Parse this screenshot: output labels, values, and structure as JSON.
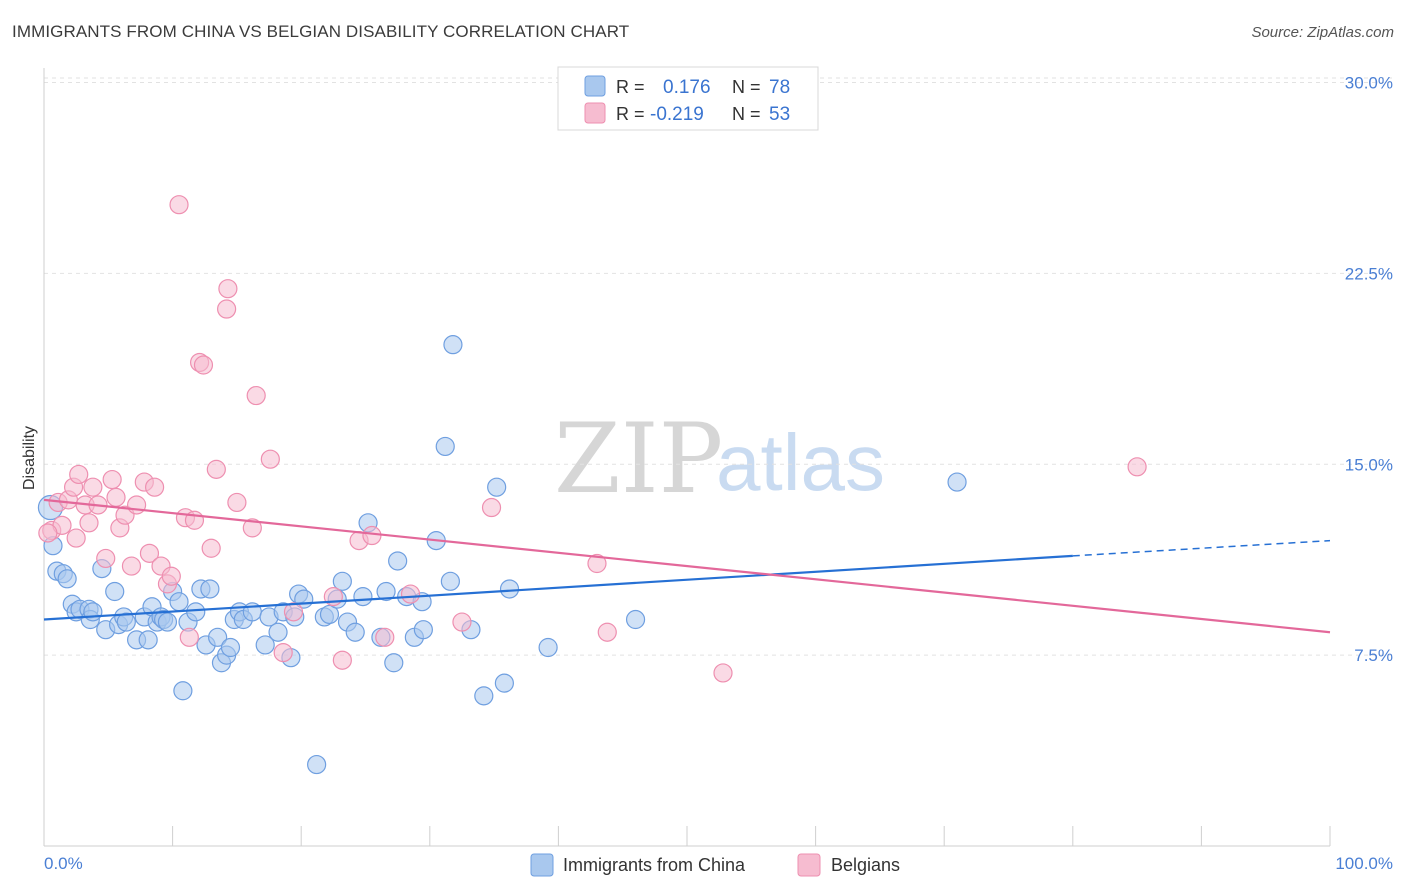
{
  "title": "IMMIGRANTS FROM CHINA VS BELGIAN DISABILITY CORRELATION CHART",
  "source": "Source: ZipAtlas.com",
  "watermark": {
    "zip": "ZIP",
    "atlas": "atlas"
  },
  "colors": {
    "blue_fill": "#a9c8ee",
    "blue_stroke": "#6f9fe0",
    "blue_line": "#2670d4",
    "pink_fill": "#f6bcd0",
    "pink_stroke": "#ee8fb0",
    "pink_line": "#e3689a",
    "tick_text": "#4a7fd4"
  },
  "legend": {
    "r_label": "R =",
    "n_label": "N =",
    "rows": [
      {
        "series": "Immigrants from China",
        "r": "0.176",
        "n": "78"
      },
      {
        "series": "Belgians",
        "r": "-0.219",
        "n": "53"
      }
    ]
  },
  "chart_data": {
    "type": "scatter",
    "title": "IMMIGRANTS FROM CHINA VS BELGIAN DISABILITY CORRELATION CHART",
    "xlabel": "",
    "ylabel": "Disability",
    "xlim": [
      0,
      100
    ],
    "ylim": [
      0,
      31.2
    ],
    "x_tick_labels": [
      "0.0%",
      "100.0%"
    ],
    "y_ticks": [
      7.5,
      15.0,
      22.5,
      30.0
    ],
    "y_tick_labels": [
      "7.5%",
      "15.0%",
      "22.5%",
      "30.0%"
    ],
    "grid": "horizontal dashed",
    "legend_position": "top-center",
    "series": [
      {
        "name": "Immigrants from China",
        "r": 0.176,
        "n": 78,
        "trend": {
          "x": [
            0,
            80
          ],
          "y": [
            8.9,
            11.4
          ],
          "dashed_extension": {
            "x": [
              80,
              100
            ],
            "y": [
              11.4,
              12.0
            ]
          }
        },
        "points": [
          [
            0.5,
            13.3
          ],
          [
            0.7,
            11.8
          ],
          [
            1.0,
            10.8
          ],
          [
            1.5,
            10.7
          ],
          [
            1.8,
            10.5
          ],
          [
            2.2,
            9.5
          ],
          [
            2.5,
            9.2
          ],
          [
            2.8,
            9.3
          ],
          [
            3.5,
            9.3
          ],
          [
            3.6,
            8.9
          ],
          [
            3.8,
            9.2
          ],
          [
            4.5,
            10.9
          ],
          [
            4.8,
            8.5
          ],
          [
            5.5,
            10.0
          ],
          [
            5.8,
            8.7
          ],
          [
            6.2,
            9.0
          ],
          [
            6.4,
            8.8
          ],
          [
            7.2,
            8.1
          ],
          [
            7.8,
            9.0
          ],
          [
            8.1,
            8.1
          ],
          [
            8.4,
            9.4
          ],
          [
            8.8,
            8.8
          ],
          [
            9.1,
            9.0
          ],
          [
            9.3,
            8.9
          ],
          [
            9.6,
            8.8
          ],
          [
            10.0,
            10.0
          ],
          [
            10.5,
            9.6
          ],
          [
            10.8,
            6.1
          ],
          [
            11.2,
            8.8
          ],
          [
            11.8,
            9.2
          ],
          [
            12.2,
            10.1
          ],
          [
            12.6,
            7.9
          ],
          [
            12.9,
            10.1
          ],
          [
            13.5,
            8.2
          ],
          [
            13.8,
            7.2
          ],
          [
            14.2,
            7.5
          ],
          [
            14.5,
            7.8
          ],
          [
            14.8,
            8.9
          ],
          [
            15.2,
            9.2
          ],
          [
            15.5,
            8.9
          ],
          [
            16.2,
            9.2
          ],
          [
            17.2,
            7.9
          ],
          [
            17.5,
            9.0
          ],
          [
            18.2,
            8.4
          ],
          [
            18.6,
            9.2
          ],
          [
            19.2,
            7.4
          ],
          [
            19.5,
            9.0
          ],
          [
            19.8,
            9.9
          ],
          [
            20.2,
            9.7
          ],
          [
            21.2,
            3.2
          ],
          [
            21.8,
            9.0
          ],
          [
            22.2,
            9.1
          ],
          [
            22.8,
            9.7
          ],
          [
            23.2,
            10.4
          ],
          [
            23.6,
            8.8
          ],
          [
            24.2,
            8.4
          ],
          [
            24.8,
            9.8
          ],
          [
            25.2,
            12.7
          ],
          [
            26.2,
            8.2
          ],
          [
            26.6,
            10.0
          ],
          [
            27.2,
            7.2
          ],
          [
            27.5,
            11.2
          ],
          [
            28.2,
            9.8
          ],
          [
            28.8,
            8.2
          ],
          [
            29.4,
            9.6
          ],
          [
            29.5,
            8.5
          ],
          [
            30.5,
            12.0
          ],
          [
            31.2,
            15.7
          ],
          [
            31.6,
            10.4
          ],
          [
            31.8,
            19.7
          ],
          [
            33.2,
            8.5
          ],
          [
            34.2,
            5.9
          ],
          [
            35.2,
            14.1
          ],
          [
            35.8,
            6.4
          ],
          [
            36.2,
            10.1
          ],
          [
            39.2,
            7.8
          ],
          [
            46.0,
            8.9
          ],
          [
            71.0,
            14.3
          ]
        ]
      },
      {
        "name": "Belgians",
        "r": -0.219,
        "n": 53,
        "trend": {
          "x": [
            0,
            100
          ],
          "y": [
            13.6,
            8.4
          ]
        },
        "points": [
          [
            0.6,
            12.4
          ],
          [
            1.1,
            13.5
          ],
          [
            1.4,
            12.6
          ],
          [
            1.9,
            13.6
          ],
          [
            2.3,
            14.1
          ],
          [
            2.7,
            14.6
          ],
          [
            3.2,
            13.4
          ],
          [
            3.5,
            12.7
          ],
          [
            3.8,
            14.1
          ],
          [
            4.2,
            13.4
          ],
          [
            4.8,
            11.3
          ],
          [
            5.3,
            14.4
          ],
          [
            5.6,
            13.7
          ],
          [
            5.9,
            12.5
          ],
          [
            6.3,
            13.0
          ],
          [
            6.8,
            11.0
          ],
          [
            7.2,
            13.4
          ],
          [
            7.8,
            14.3
          ],
          [
            8.2,
            11.5
          ],
          [
            8.6,
            14.1
          ],
          [
            9.1,
            11.0
          ],
          [
            9.6,
            10.3
          ],
          [
            9.9,
            10.6
          ],
          [
            10.5,
            25.2
          ],
          [
            11.0,
            12.9
          ],
          [
            11.3,
            8.2
          ],
          [
            11.7,
            12.8
          ],
          [
            12.1,
            19.0
          ],
          [
            12.4,
            18.9
          ],
          [
            13.0,
            11.7
          ],
          [
            13.4,
            14.8
          ],
          [
            14.2,
            21.1
          ],
          [
            14.3,
            21.9
          ],
          [
            15.0,
            13.5
          ],
          [
            16.2,
            12.5
          ],
          [
            16.5,
            17.7
          ],
          [
            17.6,
            15.2
          ],
          [
            18.6,
            7.6
          ],
          [
            19.4,
            9.2
          ],
          [
            22.5,
            9.8
          ],
          [
            23.2,
            7.3
          ],
          [
            24.5,
            12.0
          ],
          [
            25.5,
            12.2
          ],
          [
            26.5,
            8.2
          ],
          [
            28.5,
            9.9
          ],
          [
            32.5,
            8.8
          ],
          [
            34.8,
            13.3
          ],
          [
            43.0,
            11.1
          ],
          [
            43.8,
            8.4
          ],
          [
            52.8,
            6.8
          ],
          [
            85.0,
            14.9
          ],
          [
            0.3,
            12.3
          ],
          [
            2.5,
            12.1
          ]
        ]
      }
    ]
  }
}
